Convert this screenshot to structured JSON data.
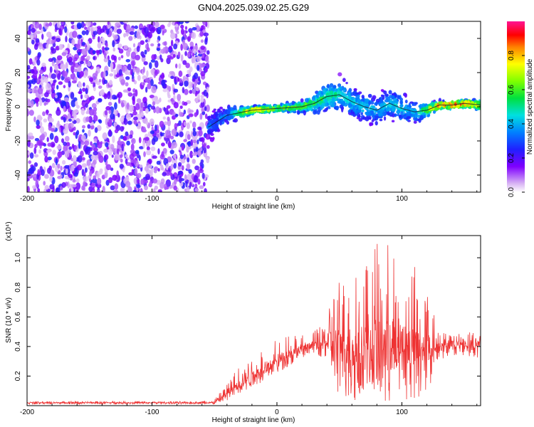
{
  "title": "GN04.2025.039.02.25.G29",
  "chart_data": [
    {
      "type": "heatmap",
      "name": "spectrogram",
      "xlabel": "Height of straight line (km)",
      "ylabel": "Frequency (Hz)",
      "xlim": [
        -200,
        163
      ],
      "ylim": [
        -50,
        50
      ],
      "xticks": [
        -200,
        -100,
        0,
        100
      ],
      "yticks": [
        -40,
        -20,
        0,
        20,
        40
      ],
      "colorbar": {
        "label": "Normalized spectral amplitude",
        "range": [
          0,
          1
        ],
        "ticks": [
          "0.0",
          "0.2",
          "0.4",
          "0.6",
          "0.8"
        ]
      },
      "noise_region_x": [
        -200,
        -55
      ],
      "signal_track": {
        "x": [
          -55,
          -40,
          -20,
          0,
          20,
          30,
          40,
          50,
          60,
          70,
          80,
          90,
          100,
          110,
          120,
          130,
          140,
          150,
          163
        ],
        "y": [
          -12,
          -5,
          -2,
          -1,
          0,
          2,
          6,
          7,
          3,
          0,
          -2,
          2,
          -1,
          -3,
          -2,
          1,
          1,
          2,
          1
        ],
        "amplitude": [
          0.2,
          0.25,
          0.75,
          0.6,
          0.55,
          0.5,
          0.45,
          0.4,
          0.35,
          0.35,
          0.3,
          0.35,
          0.35,
          0.3,
          0.55,
          0.85,
          0.85,
          0.9,
          0.6
        ],
        "spread_hz": [
          8,
          5,
          2,
          2,
          3,
          5,
          8,
          9,
          8,
          8,
          9,
          8,
          8,
          7,
          4,
          2,
          2,
          2,
          3
        ]
      }
    },
    {
      "type": "line",
      "name": "snr",
      "xlabel": "Height of straight line (km)",
      "ylabel": "SNR (10 * v/v)",
      "scale_label": "(x10⁴)",
      "xlim": [
        -200,
        163
      ],
      "ylim": [
        0,
        1.15
      ],
      "xticks": [
        -200,
        -100,
        0,
        100
      ],
      "yticks": [
        "0.2",
        "0.4",
        "0.6",
        "0.8",
        "1.0"
      ],
      "color": "#ee3333",
      "envelope": {
        "x": [
          -200,
          -60,
          -50,
          -40,
          -30,
          -20,
          -10,
          0,
          10,
          20,
          30,
          40,
          50,
          60,
          70,
          80,
          90,
          100,
          110,
          120,
          125,
          130,
          140,
          150,
          163
        ],
        "base": [
          0.02,
          0.02,
          0.02,
          0.08,
          0.15,
          0.2,
          0.25,
          0.3,
          0.35,
          0.38,
          0.42,
          0.44,
          0.4,
          0.4,
          0.4,
          0.4,
          0.4,
          0.4,
          0.4,
          0.4,
          0.4,
          0.42,
          0.42,
          0.42,
          0.42
        ],
        "lower": [
          0.01,
          0.01,
          0.01,
          0.03,
          0.07,
          0.12,
          0.17,
          0.22,
          0.27,
          0.32,
          0.36,
          0.3,
          0.05,
          0.03,
          0.03,
          0.03,
          0.03,
          0.03,
          0.03,
          0.05,
          0.15,
          0.3,
          0.34,
          0.34,
          0.32
        ],
        "upper": [
          0.03,
          0.03,
          0.05,
          0.15,
          0.3,
          0.35,
          0.4,
          0.45,
          0.48,
          0.48,
          0.5,
          0.65,
          0.85,
          0.95,
          1.05,
          1.1,
          1.12,
          1.05,
          0.98,
          0.8,
          0.65,
          0.5,
          0.48,
          0.5,
          0.5
        ]
      }
    }
  ]
}
